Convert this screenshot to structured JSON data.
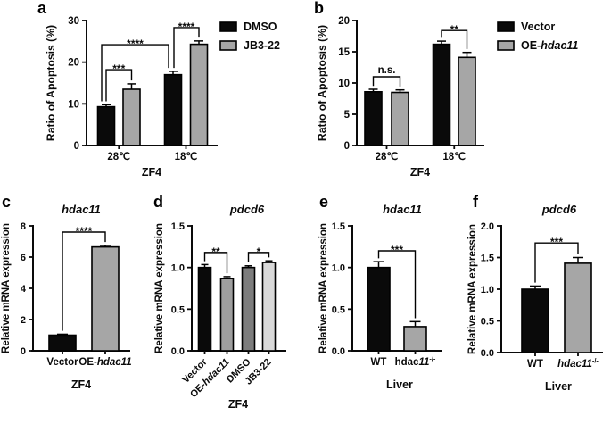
{
  "figure": {
    "background": "#ffffff",
    "axis_color": "#0a0a0a"
  },
  "chart_data": [
    {
      "panel_label": "a",
      "type": "bar",
      "title": [],
      "ylabel": "Ratio of Apoptosis (%)",
      "xlabel": "ZF4",
      "ylim": [
        0,
        30
      ],
      "yticks": [
        "0",
        "10",
        "20",
        "30"
      ],
      "xticks": [
        [
          {
            "t": "28℃"
          }
        ],
        [
          {
            "t": "18℃"
          }
        ]
      ],
      "bars": [
        {
          "group": "28℃",
          "series": "DMSO",
          "value": 9.3,
          "error": 0.5,
          "color": "#0a0a0a"
        },
        {
          "group": "28℃",
          "series": "JB3-22",
          "value": 13.5,
          "error": 1.3,
          "color": "#a6a6a6"
        },
        {
          "group": "18℃",
          "series": "DMSO",
          "value": 17.0,
          "error": 0.8,
          "color": "#0a0a0a"
        },
        {
          "group": "18℃",
          "series": "JB3-22",
          "value": 24.3,
          "error": 0.8,
          "color": "#a6a6a6"
        }
      ],
      "legend": [
        {
          "label": [
            {
              "t": "DMSO"
            }
          ],
          "color": "#0a0a0a"
        },
        {
          "label": [
            {
              "t": "JB3-22"
            }
          ],
          "color": "#a6a6a6"
        }
      ],
      "significance": [
        {
          "between": [
            0,
            1
          ],
          "y": 18.2,
          "label": "***"
        },
        {
          "between": [
            0,
            2
          ],
          "y": 24.2,
          "label": "****",
          "dx1": -5,
          "dx2": -5
        },
        {
          "between": [
            2,
            3
          ],
          "y": 28.3,
          "label": "****",
          "dx1": 1
        }
      ]
    },
    {
      "panel_label": "b",
      "type": "bar",
      "title": [],
      "ylabel": "Ratio of Apoptosis (%)",
      "xlabel": "ZF4",
      "ylim": [
        0,
        20
      ],
      "yticks": [
        "0",
        "5",
        "10",
        "15",
        "20"
      ],
      "xticks": [
        [
          {
            "t": "28℃"
          }
        ],
        [
          {
            "t": "18℃"
          }
        ]
      ],
      "bars": [
        {
          "group": "28℃",
          "series": "Vector",
          "value": 8.6,
          "error": 0.4,
          "color": "#0a0a0a"
        },
        {
          "group": "28℃",
          "series": "OE-hdac11",
          "value": 8.5,
          "error": 0.4,
          "color": "#a6a6a6"
        },
        {
          "group": "18℃",
          "series": "Vector",
          "value": 16.2,
          "error": 0.5,
          "color": "#0a0a0a"
        },
        {
          "group": "18℃",
          "series": "OE-hdac11",
          "value": 14.1,
          "error": 0.8,
          "color": "#a6a6a6"
        }
      ],
      "legend": [
        {
          "label": [
            {
              "t": "Vector"
            }
          ],
          "color": "#0a0a0a"
        },
        {
          "label": [
            {
              "t": "OE-"
            },
            {
              "t": "hdac11",
              "i": true
            }
          ],
          "color": "#a6a6a6"
        }
      ],
      "significance": [
        {
          "between": [
            0,
            1
          ],
          "y": 11.0,
          "label": "n.s."
        },
        {
          "between": [
            2,
            3
          ],
          "y": 18.4,
          "label": "**"
        }
      ]
    },
    {
      "panel_label": "c",
      "type": "bar",
      "title": [
        {
          "t": "hdac11",
          "i": true
        }
      ],
      "ylabel": "Relative mRNA expression",
      "xlabel": "ZF4",
      "ylim": [
        0,
        8
      ],
      "yticks": [
        "0",
        "2",
        "4",
        "6",
        "8"
      ],
      "xticks": [
        [
          {
            "t": "Vector"
          }
        ],
        [
          {
            "t": "OE-"
          },
          {
            "t": "hdac11",
            "i": true
          }
        ]
      ],
      "bars": [
        {
          "group": "Vector",
          "series": "Vector",
          "value": 1.0,
          "error": 0.06,
          "color": "#0a0a0a"
        },
        {
          "group": "OE-hdac11",
          "series": "OE-hdac11",
          "value": 6.65,
          "error": 0.1,
          "color": "#a6a6a6"
        }
      ],
      "significance": [
        {
          "between": [
            0,
            1
          ],
          "y": 7.6,
          "label": "****"
        }
      ]
    },
    {
      "panel_label": "d",
      "type": "bar",
      "title": [
        {
          "t": "pdcd6",
          "i": true
        }
      ],
      "ylabel": "Relative mRNA expression",
      "xlabel": "ZF4",
      "ylim": [
        0,
        1.5
      ],
      "yticks": [
        "0.0",
        "0.5",
        "1.0",
        "1.5"
      ],
      "xticks": [
        [
          {
            "t": "Vector"
          }
        ],
        [
          {
            "t": "OE-"
          },
          {
            "t": "hdac11",
            "i": true
          }
        ],
        [
          {
            "t": "DMSO"
          }
        ],
        [
          {
            "t": "JB3-22"
          }
        ]
      ],
      "bars": [
        {
          "group": "Vector",
          "series": "Vector",
          "value": 1.0,
          "error": 0.035,
          "color": "#0a0a0a"
        },
        {
          "group": "OE-hdac11",
          "series": "OE-hdac11",
          "value": 0.87,
          "error": 0.02,
          "color": "#9f9f9f"
        },
        {
          "group": "DMSO",
          "series": "DMSO",
          "value": 1.0,
          "error": 0.02,
          "color": "#7d7d7d"
        },
        {
          "group": "JB3-22",
          "series": "JB3-22",
          "value": 1.06,
          "error": 0.02,
          "color": "#d9d9d9"
        }
      ],
      "significance": [
        {
          "between": [
            0,
            1
          ],
          "y": 1.18,
          "label": "**"
        },
        {
          "between": [
            2,
            3
          ],
          "y": 1.18,
          "label": "*"
        }
      ]
    },
    {
      "panel_label": "e",
      "type": "bar",
      "title": [
        {
          "t": "hdac11",
          "i": true
        }
      ],
      "ylabel": "Relative mRNA expression",
      "xlabel": "Liver",
      "ylim": [
        0,
        1.5
      ],
      "yticks": [
        "0.0",
        "0.5",
        "1.0",
        "1.5"
      ],
      "xticks": [
        [
          {
            "t": "WT"
          }
        ],
        [
          {
            "t": "hdac"
          },
          {
            "t": "11",
            "i": true
          },
          {
            "t": "-/-",
            "sup": true
          }
        ]
      ],
      "bars": [
        {
          "group": "WT",
          "series": "WT",
          "value": 1.0,
          "error": 0.07,
          "color": "#0a0a0a"
        },
        {
          "group": "hdac11-/-",
          "series": "hdac11-/-",
          "value": 0.29,
          "error": 0.06,
          "color": "#a6a6a6"
        }
      ],
      "significance": [
        {
          "between": [
            0,
            1
          ],
          "y": 1.2,
          "label": "***"
        }
      ]
    },
    {
      "panel_label": "f",
      "type": "bar",
      "title": [
        {
          "t": "pdcd6",
          "i": true
        }
      ],
      "ylabel": "Relative mRNA expression",
      "xlabel": "Liver",
      "ylim": [
        0,
        2.0
      ],
      "yticks": [
        "0.0",
        "0.5",
        "1.0",
        "1.5",
        "2.0"
      ],
      "xticks": [
        [
          {
            "t": "WT"
          }
        ],
        [
          {
            "t": "hdac11",
            "i": true
          },
          {
            "t": "-/-",
            "sup": true
          }
        ]
      ],
      "bars": [
        {
          "group": "WT",
          "series": "WT",
          "value": 1.0,
          "error": 0.05,
          "color": "#0a0a0a"
        },
        {
          "group": "hdac11-/-",
          "series": "hdac11-/-",
          "value": 1.41,
          "error": 0.09,
          "color": "#a6a6a6"
        }
      ],
      "significance": [
        {
          "between": [
            0,
            1
          ],
          "y": 1.73,
          "label": "***"
        }
      ]
    }
  ]
}
